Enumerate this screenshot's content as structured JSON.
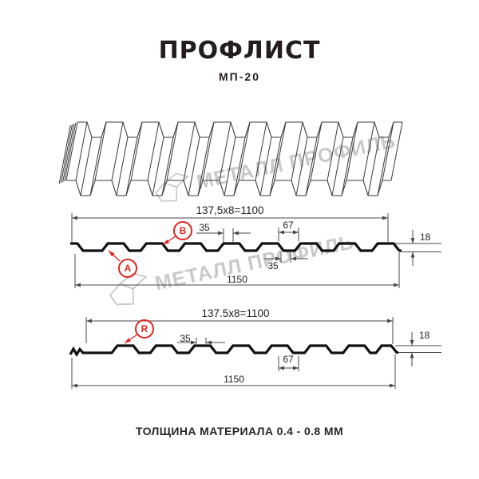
{
  "header": {
    "title": "ПРОФЛИСТ",
    "subtitle": "МП-20"
  },
  "watermark": {
    "text": "МЕТАЛЛ ПРОФИЛЬ"
  },
  "section1": {
    "dim_top": "137,5x8=1100",
    "dim_35_top": "35",
    "dim_67": "67",
    "dim_18": "18",
    "dim_35_bottom": "35",
    "dim_bottom": "1150",
    "label_a": "A",
    "label_b": "B"
  },
  "section2": {
    "dim_top": "137.5x8=1100",
    "dim_35": "35",
    "dim_67": "67",
    "dim_18": "18",
    "dim_bottom": "1150",
    "label_r": "R"
  },
  "footer": {
    "text": "ТОЛЩИНА МАТЕРИАЛА 0.4 - 0.8 ММ"
  },
  "colors": {
    "accent_red": "#e02420",
    "line": "#111111",
    "dim_line": "#4a4a4a",
    "iso_line": "#3a3a3a",
    "watermark": "#c9c9c9"
  }
}
